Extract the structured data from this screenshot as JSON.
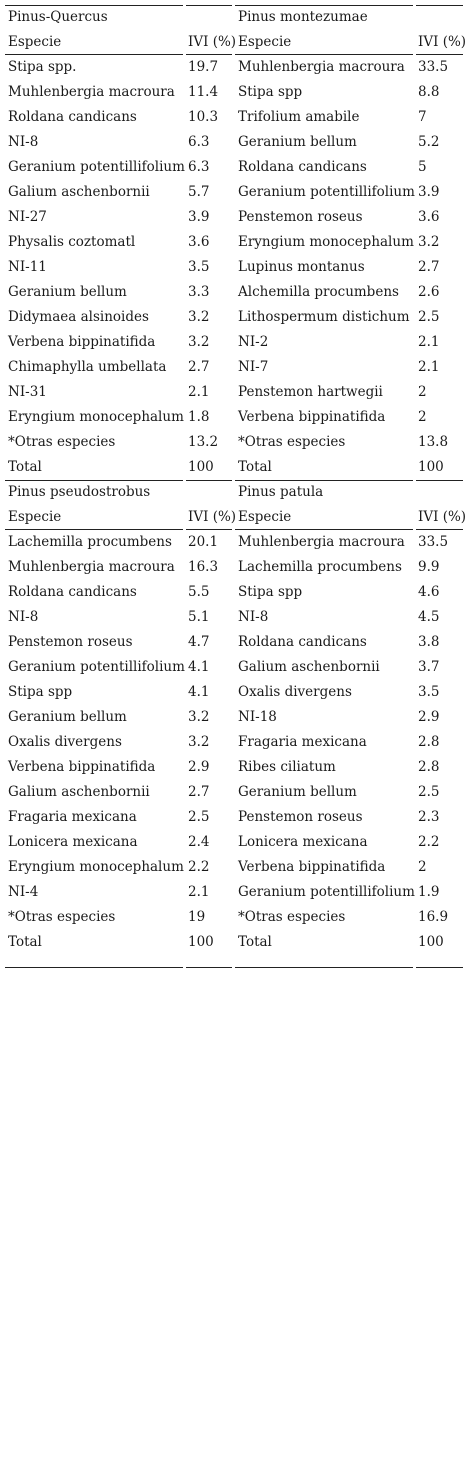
{
  "sections": [
    {
      "left": {
        "group": "Pinus-Quercus",
        "col_species": "Especie",
        "col_ivi": "IVI (%)",
        "rows": [
          {
            "species": "Stipa spp.",
            "ivi": "19.7"
          },
          {
            "species": "Muhlenbergia macroura",
            "ivi": "11.4"
          },
          {
            "species": "Roldana candicans",
            "ivi": "10.3"
          },
          {
            "species": "NI-8",
            "ivi": "6.3"
          },
          {
            "species": "Geranium potentillifolium",
            "ivi": "6.3"
          },
          {
            "species": "Galium aschenbornii",
            "ivi": "5.7"
          },
          {
            "species": "NI-27",
            "ivi": "3.9"
          },
          {
            "species": "Physalis coztomatl",
            "ivi": "3.6"
          },
          {
            "species": "NI-11",
            "ivi": "3.5"
          },
          {
            "species": "Geranium bellum",
            "ivi": "3.3"
          },
          {
            "species": "Didymaea alsinoides",
            "ivi": "3.2"
          },
          {
            "species": "Verbena bippinatifida",
            "ivi": "3.2"
          },
          {
            "species": "Chimaphylla umbellata",
            "ivi": "2.7"
          },
          {
            "species": "NI-31",
            "ivi": "2.1"
          },
          {
            "species": "Eryngium monocephalum",
            "ivi": "1.8"
          },
          {
            "species": "*Otras especies",
            "ivi": "13.2"
          },
          {
            "species": "Total",
            "ivi": "100"
          }
        ]
      },
      "right": {
        "group": "Pinus montezumae",
        "col_species": "Especie",
        "col_ivi": "IVI (%)",
        "rows": [
          {
            "species": "Muhlenbergia macroura",
            "ivi": "33.5"
          },
          {
            "species": "Stipa spp",
            "ivi": "8.8"
          },
          {
            "species": "Trifolium amabile",
            "ivi": "7"
          },
          {
            "species": "Geranium bellum",
            "ivi": "5.2"
          },
          {
            "species": "Roldana candicans",
            "ivi": "5"
          },
          {
            "species": "Geranium potentillifolium",
            "ivi": "3.9"
          },
          {
            "species": "Penstemon roseus",
            "ivi": "3.6"
          },
          {
            "species": "Eryngium monocephalum",
            "ivi": "3.2"
          },
          {
            "species": "Lupinus montanus",
            "ivi": "2.7"
          },
          {
            "species": "Alchemilla procumbens",
            "ivi": "2.6"
          },
          {
            "species": "Lithospermum distichum",
            "ivi": "2.5"
          },
          {
            "species": "NI-2",
            "ivi": "2.1"
          },
          {
            "species": "NI-7",
            "ivi": "2.1"
          },
          {
            "species": "Penstemon hartwegii",
            "ivi": "2"
          },
          {
            "species": "Verbena bippinatifida",
            "ivi": "2"
          },
          {
            "species": "*Otras especies",
            "ivi": "13.8"
          },
          {
            "species": "Total",
            "ivi": "100"
          }
        ]
      }
    },
    {
      "left": {
        "group": "Pinus pseudostrobus",
        "col_species": "Especie",
        "col_ivi": "IVI (%)",
        "rows": [
          {
            "species": "Lachemilla procumbens",
            "ivi": "20.1"
          },
          {
            "species": "Muhlenbergia macroura",
            "ivi": "16.3"
          },
          {
            "species": "Roldana candicans",
            "ivi": "5.5"
          },
          {
            "species": "NI-8",
            "ivi": "5.1"
          },
          {
            "species": "Penstemon roseus",
            "ivi": "4.7"
          },
          {
            "species": "Geranium potentillifolium",
            "ivi": "4.1"
          },
          {
            "species": "Stipa spp",
            "ivi": "4.1"
          },
          {
            "species": "Geranium bellum",
            "ivi": "3.2"
          },
          {
            "species": "Oxalis divergens",
            "ivi": "3.2"
          },
          {
            "species": "Verbena bippinatifida",
            "ivi": "2.9"
          },
          {
            "species": "Galium aschenbornii",
            "ivi": "2.7"
          },
          {
            "species": "Fragaria mexicana",
            "ivi": "2.5"
          },
          {
            "species": "Lonicera mexicana",
            "ivi": "2.4"
          },
          {
            "species": "Eryngium monocephalum",
            "ivi": "2.2"
          },
          {
            "species": "NI-4",
            "ivi": "2.1"
          },
          {
            "species": "*Otras especies",
            "ivi": "19"
          },
          {
            "species": "Total",
            "ivi": "100"
          }
        ]
      },
      "right": {
        "group": "Pinus patula",
        "col_species": "Especie",
        "col_ivi": "IVI (%)",
        "rows": [
          {
            "species": "Muhlenbergia macroura",
            "ivi": "33.5"
          },
          {
            "species": "Lachemilla procumbens",
            "ivi": "9.9"
          },
          {
            "species": "Stipa spp",
            "ivi": "4.6"
          },
          {
            "species": "NI-8",
            "ivi": "4.5"
          },
          {
            "species": "Roldana candicans",
            "ivi": "3.8"
          },
          {
            "species": "Galium aschenbornii",
            "ivi": "3.7"
          },
          {
            "species": "Oxalis divergens",
            "ivi": "3.5"
          },
          {
            "species": "NI-18",
            "ivi": "2.9"
          },
          {
            "species": "Fragaria mexicana",
            "ivi": "2.8"
          },
          {
            "species": "Ribes ciliatum",
            "ivi": "2.8"
          },
          {
            "species": "Geranium bellum",
            "ivi": "2.5"
          },
          {
            "species": "Penstemon roseus",
            "ivi": "2.3"
          },
          {
            "species": "Lonicera mexicana",
            "ivi": "2.2"
          },
          {
            "species": "Verbena bippinatifida",
            "ivi": "2"
          },
          {
            "species": "Geranium potentillifolium",
            "ivi": "1.9"
          },
          {
            "species": "*Otras especies",
            "ivi": "16.9"
          },
          {
            "species": "Total",
            "ivi": "100"
          }
        ]
      }
    }
  ]
}
